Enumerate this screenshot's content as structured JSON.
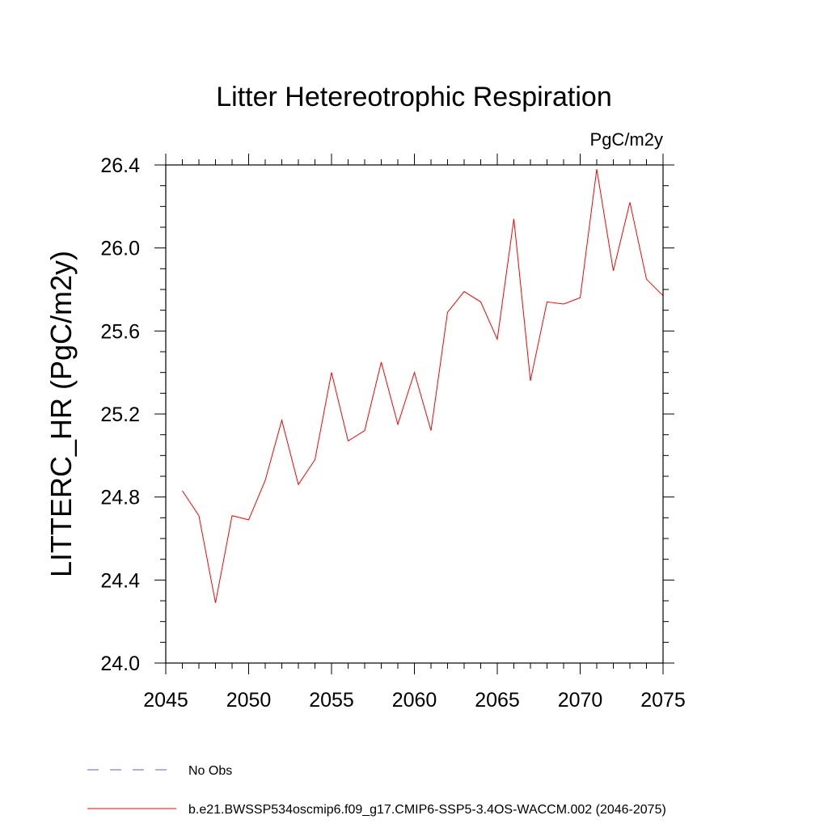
{
  "chart_data": {
    "type": "line",
    "title": "Litter Hetereotrophic Respiration",
    "units_label": "PgC/m2y",
    "ylabel": "LITTERC_HR  (PgC/m2y)",
    "xlabel": "",
    "xlim": [
      2045,
      2075
    ],
    "ylim": [
      24.0,
      26.4
    ],
    "x_ticks": [
      2045,
      2050,
      2055,
      2060,
      2065,
      2070,
      2075
    ],
    "x_tick_labels": [
      "2045",
      "2050",
      "2055",
      "2060",
      "2065",
      "2070",
      "2075"
    ],
    "y_ticks": [
      24.0,
      24.4,
      24.8,
      25.2,
      25.6,
      26.0,
      26.4
    ],
    "y_tick_labels": [
      "24.0",
      "24.4",
      "24.8",
      "25.2",
      "25.6",
      "26.0",
      "26.4"
    ],
    "y_minor_step": 0.1,
    "x_minor_step": 1,
    "grid": false,
    "legend_position": "bottom-left",
    "series": [
      {
        "name": "b.e21.BWSSP534oscmip6.f09_g17.CMIP6-SSP5-3.4OS-WACCM.002 (2046-2075)",
        "color": "#ff0000",
        "style": "solid",
        "x": [
          2046,
          2047,
          2048,
          2049,
          2050,
          2051,
          2052,
          2053,
          2054,
          2055,
          2056,
          2057,
          2058,
          2059,
          2060,
          2061,
          2062,
          2063,
          2064,
          2065,
          2066,
          2067,
          2068,
          2069,
          2070,
          2071,
          2072,
          2073,
          2074,
          2075
        ],
        "values": [
          24.83,
          24.71,
          24.29,
          24.71,
          24.69,
          24.88,
          25.17,
          24.86,
          24.98,
          25.4,
          25.07,
          25.12,
          25.45,
          25.15,
          25.4,
          25.12,
          25.69,
          25.79,
          25.74,
          25.56,
          26.14,
          25.36,
          25.74,
          25.73,
          25.76,
          26.38,
          25.89,
          26.22,
          25.85,
          25.77
        ]
      }
    ],
    "legend": [
      {
        "label": "No Obs",
        "color": "#6a5acd",
        "style": "dashed"
      },
      {
        "label": "b.e21.BWSSP534oscmip6.f09_g17.CMIP6-SSP5-3.4OS-WACCM.002 (2046-2075)",
        "color": "#ff0000",
        "style": "solid"
      }
    ]
  }
}
